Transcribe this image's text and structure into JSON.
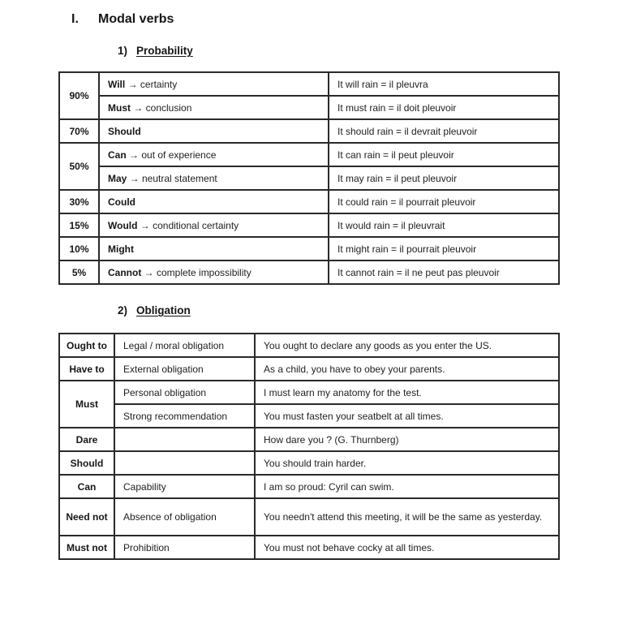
{
  "colors": {
    "background": "#ffffff",
    "text": "#1e1e1e",
    "border": "#2a2a2a"
  },
  "section": {
    "number": "I.",
    "title": "Modal verbs"
  },
  "subsections": [
    {
      "number": "1)",
      "title": "Probability"
    },
    {
      "number": "2)",
      "title": "Obligation"
    }
  ],
  "probability": {
    "groups": [
      {
        "percent": "90%",
        "rows": [
          {
            "modal": "Will",
            "rest": " → certainty",
            "example": "It will rain = il pleuvra"
          },
          {
            "modal": "Must",
            "rest": " → conclusion",
            "example": "It must rain = il doit pleuvoir"
          }
        ]
      },
      {
        "percent": "70%",
        "rows": [
          {
            "modal": "Should",
            "rest": "",
            "example": "It should rain = il devrait pleuvoir"
          }
        ]
      },
      {
        "percent": "50%",
        "rows": [
          {
            "modal": "Can",
            "rest": " → out of experience",
            "example": "It can rain = il peut pleuvoir"
          },
          {
            "modal": "May",
            "rest": " → neutral statement",
            "example": "It may rain = il peut pleuvoir"
          }
        ]
      },
      {
        "percent": "30%",
        "rows": [
          {
            "modal": "Could",
            "rest": "",
            "example": "It could rain = il pourrait pleuvoir"
          }
        ]
      },
      {
        "percent": "15%",
        "rows": [
          {
            "modal": "Would",
            "rest": " → conditional certainty",
            "example": "It would rain = il pleuvrait"
          }
        ]
      },
      {
        "percent": "10%",
        "rows": [
          {
            "modal": "Might",
            "rest": "",
            "example": "It might rain = il pourrait pleuvoir"
          }
        ]
      },
      {
        "percent": "5%",
        "rows": [
          {
            "modal": "Cannot",
            "rest": " → complete impossibility",
            "example": "It cannot rain = il ne peut pas pleuvoir"
          }
        ]
      }
    ]
  },
  "obligation": {
    "groups": [
      {
        "modal": "Ought to",
        "rows": [
          {
            "meaning": "Legal / moral obligation",
            "example": "You ought to declare any goods as you enter the US."
          }
        ]
      },
      {
        "modal": "Have to",
        "rows": [
          {
            "meaning": "External obligation",
            "example": "As a child, you have to obey your parents."
          }
        ]
      },
      {
        "modal": "Must",
        "rows": [
          {
            "meaning": "Personal obligation",
            "example": "I must learn my anatomy for the test."
          },
          {
            "meaning": "Strong recommendation",
            "example": "You must fasten your seatbelt at all times."
          }
        ]
      },
      {
        "modal": "Dare",
        "rows": [
          {
            "meaning": "",
            "example": "How dare you ? (G. Thurnberg)"
          }
        ]
      },
      {
        "modal": "Should",
        "rows": [
          {
            "meaning": "",
            "example": "You should train harder."
          }
        ]
      },
      {
        "modal": "Can",
        "rows": [
          {
            "meaning": "Capability",
            "example": "I am so proud: Cyril can swim."
          }
        ]
      },
      {
        "modal": "Need not",
        "rows": [
          {
            "meaning": "Absence of obligation",
            "example": "You needn't attend this meeting, it will be the same as yesterday."
          }
        ]
      },
      {
        "modal": "Must not",
        "rows": [
          {
            "meaning": "Prohibition",
            "example": "You must not behave cocky at all times."
          }
        ]
      }
    ]
  }
}
